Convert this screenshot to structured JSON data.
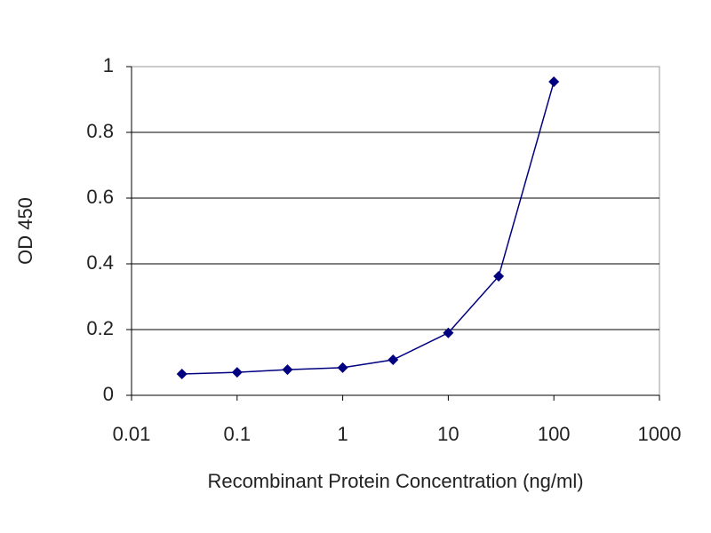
{
  "chart_data": {
    "type": "line",
    "x_label": "Recombinant Protein Concentration (ng/ml)",
    "y_label": "OD 450",
    "x": [
      0.03,
      0.1,
      0.3,
      1,
      3,
      10,
      30,
      100
    ],
    "values": [
      0.065,
      0.07,
      0.078,
      0.084,
      0.108,
      0.19,
      0.362,
      0.954
    ],
    "color": "#000080",
    "xscale": "log",
    "xlim": [
      0.01,
      1000
    ],
    "xticks": [
      0.01,
      0.1,
      1,
      10,
      100,
      1000
    ],
    "ylim": [
      0,
      1
    ],
    "yticks": [
      0,
      0.2,
      0.4,
      0.6,
      0.8,
      1
    ],
    "grid": true
  }
}
